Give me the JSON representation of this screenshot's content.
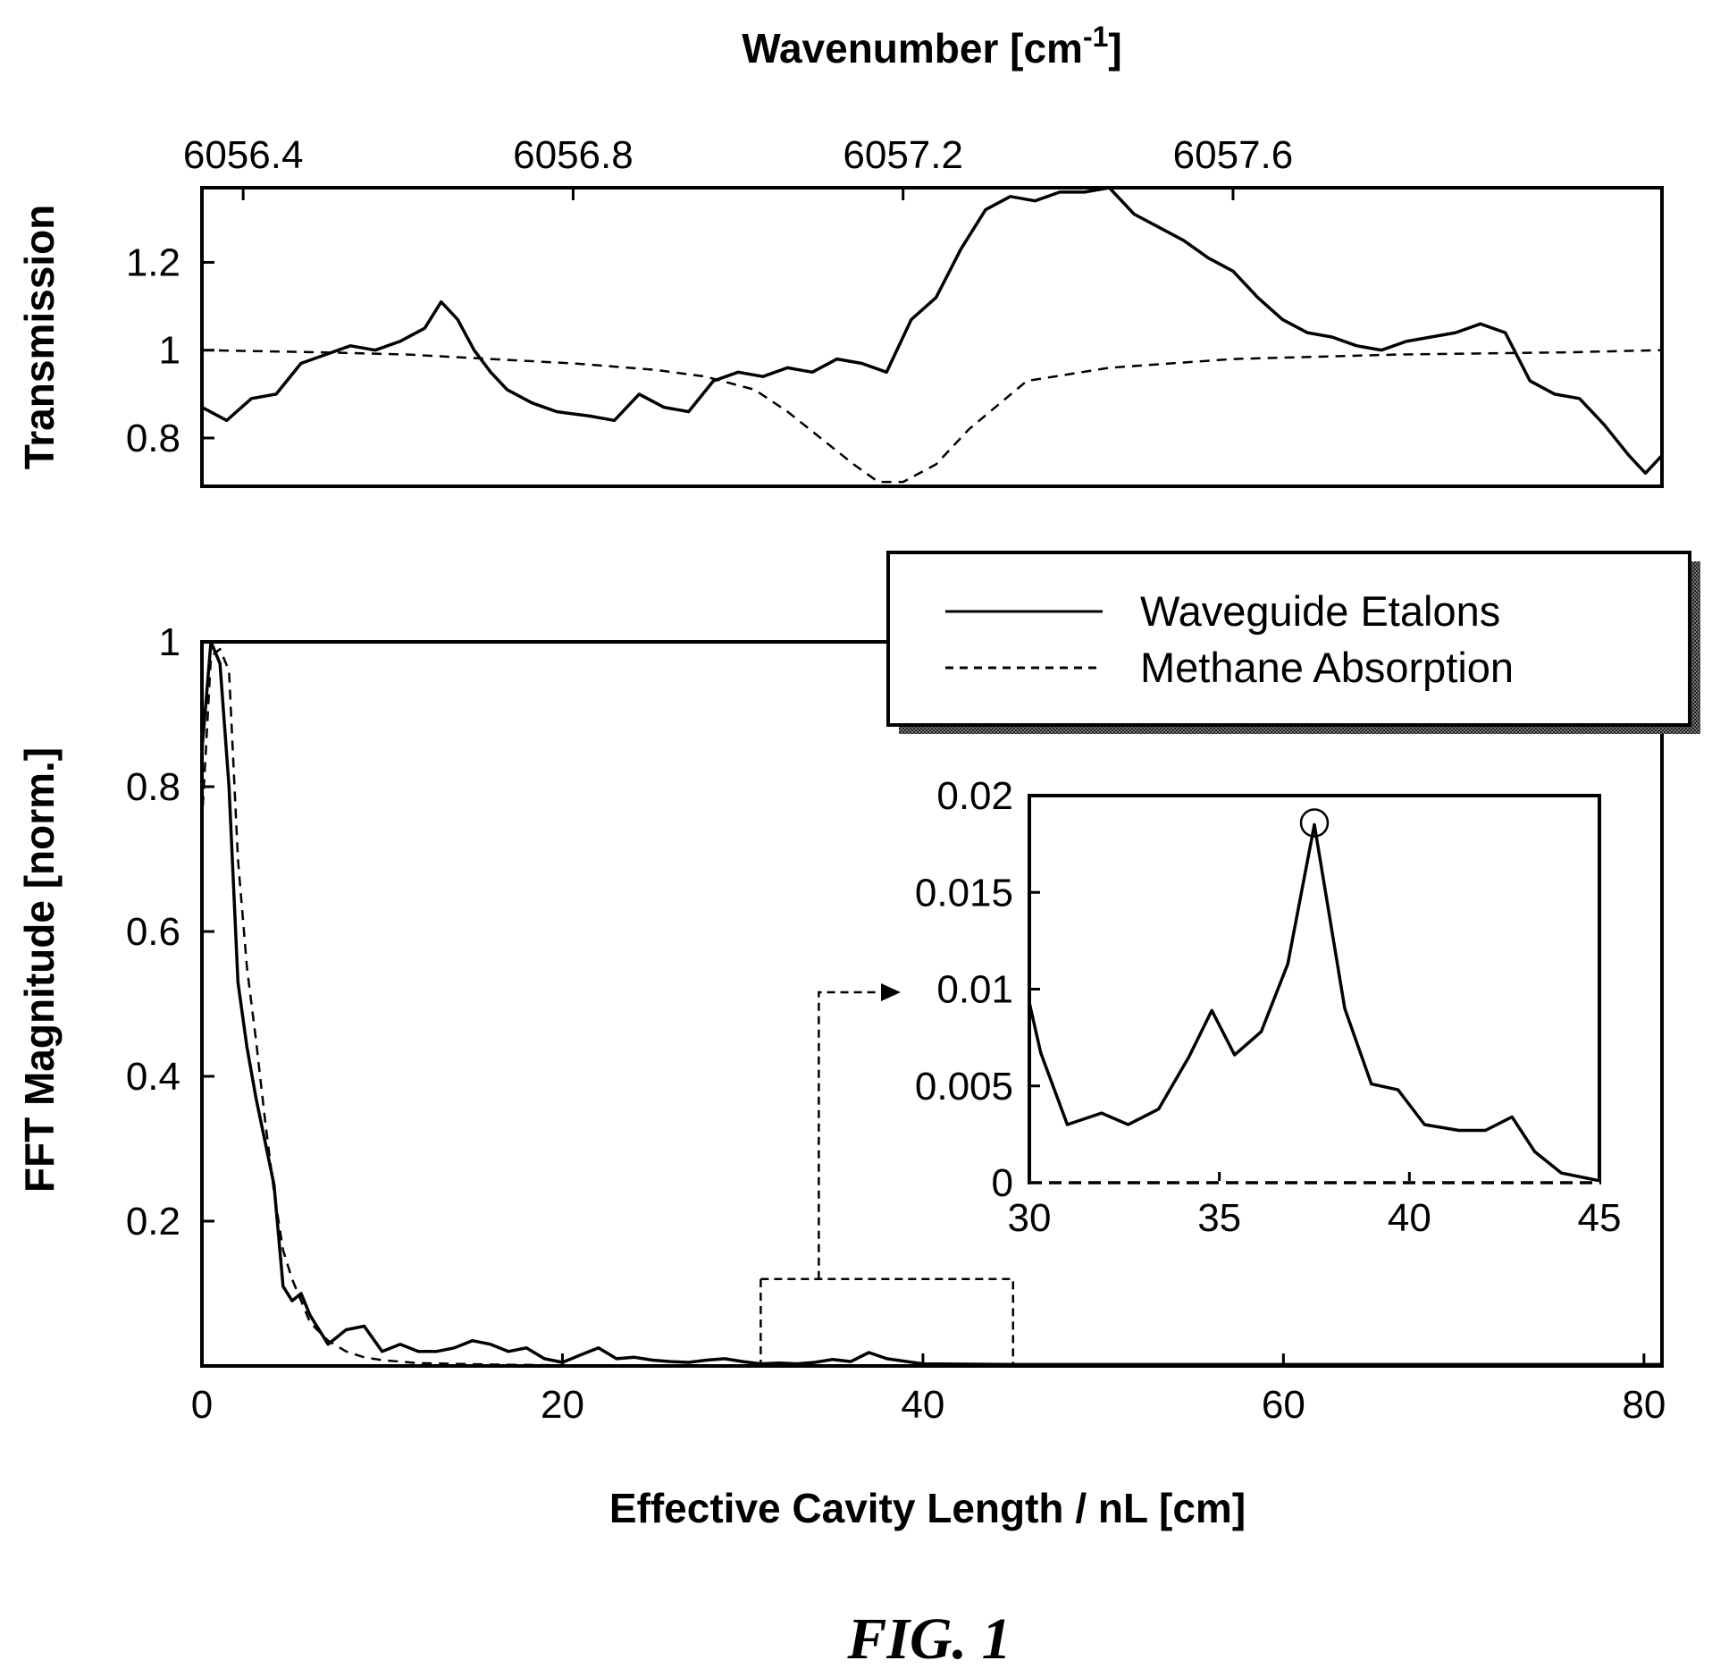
{
  "chart_data": [
    {
      "id": "transmission",
      "type": "line",
      "xlabel": "Wavenumber [cm-1]",
      "xlabel_parts": {
        "base": "Wavenumber [cm",
        "sup": "-1",
        "close": "]"
      },
      "ylabel": "Transmission",
      "xlim": [
        6056.35,
        6058.12
      ],
      "ylim": [
        0.69,
        1.37
      ],
      "x_axis_position": "top",
      "xticks": [
        6056.4,
        6056.8,
        6057.2,
        6057.6
      ],
      "xtick_labels": [
        "6056.4",
        "6056.8",
        "6057.2",
        "6057.6"
      ],
      "yticks": [
        0.8,
        1.0,
        1.2
      ],
      "ytick_labels": [
        "0.8",
        "1",
        "1.2"
      ],
      "series": [
        {
          "name": "Waveguide Etalons",
          "style": "solid",
          "x": [
            6056.35,
            6056.38,
            6056.41,
            6056.44,
            6056.47,
            6056.5,
            6056.53,
            6056.56,
            6056.59,
            6056.62,
            6056.64,
            6056.66,
            6056.68,
            6056.7,
            6056.72,
            6056.75,
            6056.78,
            6056.82,
            6056.85,
            6056.88,
            6056.91,
            6056.94,
            6056.97,
            6057.0,
            6057.03,
            6057.06,
            6057.09,
            6057.12,
            6057.15,
            6057.18,
            6057.21,
            6057.24,
            6057.27,
            6057.3,
            6057.33,
            6057.36,
            6057.39,
            6057.42,
            6057.45,
            6057.48,
            6057.51,
            6057.54,
            6057.57,
            6057.6,
            6057.63,
            6057.66,
            6057.69,
            6057.72,
            6057.75,
            6057.78,
            6057.81,
            6057.84,
            6057.87,
            6057.9,
            6057.93,
            6057.96,
            6057.99,
            6058.02,
            6058.05,
            6058.08,
            6058.1,
            6058.12
          ],
          "y": [
            0.87,
            0.84,
            0.89,
            0.9,
            0.97,
            0.99,
            1.01,
            1.0,
            1.02,
            1.05,
            1.11,
            1.07,
            1.0,
            0.95,
            0.91,
            0.88,
            0.86,
            0.85,
            0.84,
            0.9,
            0.87,
            0.86,
            0.93,
            0.95,
            0.94,
            0.96,
            0.95,
            0.98,
            0.97,
            0.95,
            1.07,
            1.12,
            1.23,
            1.32,
            1.35,
            1.34,
            1.36,
            1.36,
            1.37,
            1.31,
            1.28,
            1.25,
            1.21,
            1.18,
            1.12,
            1.07,
            1.04,
            1.03,
            1.01,
            1.0,
            1.02,
            1.03,
            1.04,
            1.06,
            1.04,
            0.93,
            0.9,
            0.89,
            0.83,
            0.76,
            0.72,
            0.76
          ]
        },
        {
          "name": "Methane Absorption",
          "style": "dashed",
          "x": [
            6056.35,
            6056.5,
            6056.6,
            6056.7,
            6056.8,
            6056.9,
            6056.96,
            6057.02,
            6057.06,
            6057.1,
            6057.14,
            6057.17,
            6057.2,
            6057.24,
            6057.28,
            6057.35,
            6057.45,
            6057.6,
            6057.8,
            6058.0,
            6058.12
          ],
          "y": [
            1.0,
            0.995,
            0.99,
            0.98,
            0.97,
            0.955,
            0.94,
            0.91,
            0.86,
            0.8,
            0.74,
            0.7,
            0.7,
            0.74,
            0.82,
            0.93,
            0.96,
            0.98,
            0.99,
            0.995,
            1.0
          ]
        }
      ]
    },
    {
      "id": "fft",
      "type": "line",
      "xlabel": "Effective Cavity Length / nL [cm]",
      "ylabel": "FFT Magnitude [norm.]",
      "xlim": [
        0,
        81
      ],
      "ylim": [
        0,
        1
      ],
      "xticks": [
        0,
        20,
        40,
        60,
        80
      ],
      "xtick_labels": [
        "0",
        "20",
        "40",
        "60",
        "80"
      ],
      "yticks": [
        0.2,
        0.4,
        0.6,
        0.8,
        1.0
      ],
      "ytick_labels": [
        "0.2",
        "0.4",
        "0.6",
        "0.8",
        "1"
      ],
      "legend": {
        "position": "top-right",
        "entries": [
          {
            "label": "Waveguide Etalons",
            "style": "solid"
          },
          {
            "label": "Methane Absorption",
            "style": "dashed"
          }
        ]
      },
      "zoom_box": {
        "xlim": [
          31,
          45
        ],
        "ylim": [
          0,
          0.12
        ]
      },
      "series": [
        {
          "name": "Waveguide Etalons",
          "style": "solid",
          "x": [
            0,
            0.5,
            1,
            1.5,
            2,
            2.5,
            3,
            3.5,
            4,
            4.5,
            5,
            5.5,
            6,
            7,
            8,
            9,
            10,
            11,
            12,
            13,
            14,
            15,
            16,
            17,
            18,
            19,
            20,
            21,
            22,
            23,
            24,
            25,
            26,
            27,
            28,
            29,
            30,
            31,
            32,
            33,
            34,
            35,
            36,
            37,
            38,
            40,
            45,
            50,
            60,
            70,
            81
          ],
          "y": [
            0.85,
            1.0,
            0.97,
            0.8,
            0.53,
            0.44,
            0.37,
            0.31,
            0.25,
            0.11,
            0.09,
            0.1,
            0.07,
            0.03,
            0.05,
            0.055,
            0.02,
            0.03,
            0.02,
            0.02,
            0.025,
            0.035,
            0.03,
            0.02,
            0.025,
            0.01,
            0.005,
            0.015,
            0.025,
            0.01,
            0.012,
            0.008,
            0.006,
            0.005,
            0.008,
            0.01,
            0.006,
            0.003,
            0.004,
            0.003,
            0.005,
            0.009,
            0.006,
            0.0185,
            0.01,
            0.003,
            0.002,
            0.002,
            0.002,
            0.002,
            0.002
          ]
        },
        {
          "name": "Methane Absorption",
          "style": "dashed",
          "x": [
            0,
            0.5,
            1,
            1.5,
            2,
            2.5,
            3,
            3.5,
            4,
            4.5,
            5,
            5.5,
            6,
            7,
            8,
            9,
            10,
            12,
            14,
            16,
            20,
            25,
            30,
            40,
            50,
            60,
            70,
            81
          ],
          "y": [
            0.75,
            0.98,
            0.99,
            0.96,
            0.7,
            0.55,
            0.45,
            0.34,
            0.24,
            0.16,
            0.12,
            0.09,
            0.06,
            0.035,
            0.02,
            0.012,
            0.008,
            0.004,
            0.003,
            0.002,
            0.001,
            0.001,
            0.001,
            0.0008,
            0.0007,
            0.0006,
            0.0005,
            0.0004
          ]
        }
      ]
    },
    {
      "id": "inset",
      "type": "line",
      "xlim": [
        30,
        45
      ],
      "ylim": [
        0,
        0.02
      ],
      "xticks": [
        30,
        35,
        40,
        45
      ],
      "xtick_labels": [
        "30",
        "35",
        "40",
        "45"
      ],
      "yticks": [
        0,
        0.005,
        0.01,
        0.015,
        0.02
      ],
      "ytick_labels": [
        "0",
        "0.005",
        "0.01",
        "0.015",
        "0.02"
      ],
      "marked_peak": {
        "x": 37.5,
        "y": 0.0185
      },
      "series": [
        {
          "name": "Waveguide Etalons",
          "style": "solid",
          "x": [
            30,
            30.3,
            31,
            31.9,
            32.6,
            33.4,
            34.2,
            34.8,
            35.4,
            36.1,
            36.8,
            37.5,
            38.3,
            39.0,
            39.7,
            40.4,
            41.3,
            42.0,
            42.7,
            43.3,
            44.0,
            45.0
          ],
          "y": [
            0.0093,
            0.0067,
            0.003,
            0.0036,
            0.003,
            0.0038,
            0.0065,
            0.0089,
            0.0066,
            0.0078,
            0.0113,
            0.0185,
            0.009,
            0.0051,
            0.0048,
            0.003,
            0.0027,
            0.0027,
            0.0034,
            0.0016,
            0.0005,
            0.0001
          ]
        }
      ]
    }
  ],
  "caption": "FIG. 1"
}
